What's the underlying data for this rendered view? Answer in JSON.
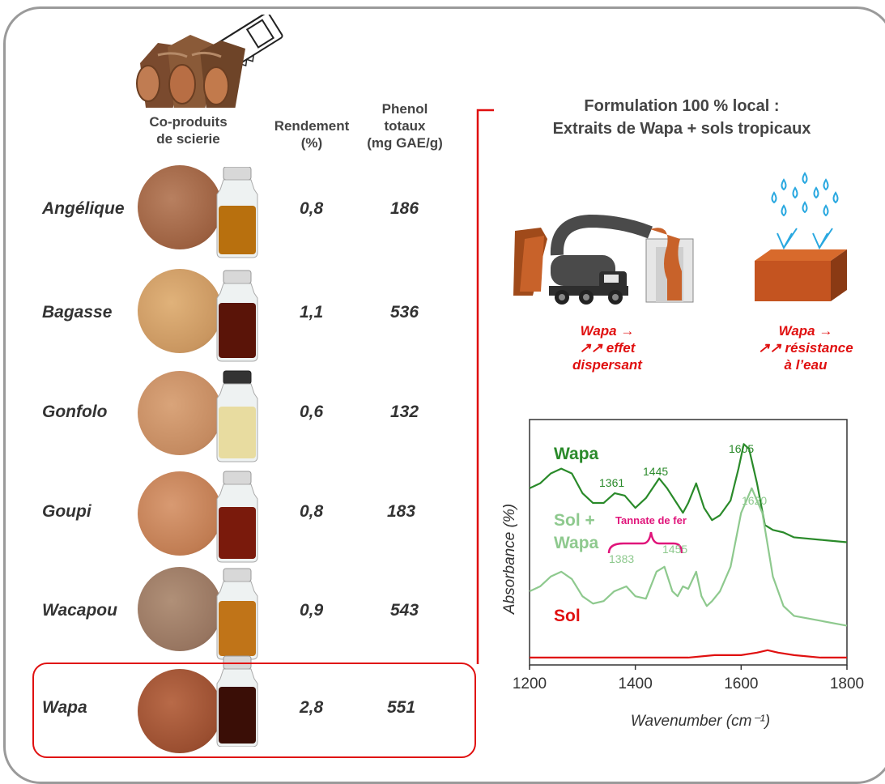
{
  "headers": {
    "coproduits": "Co-produits\nde scierie",
    "rendement": "Rendement\n(%)",
    "phenol": "Phenol\ntotaux\n(mg GAE/g)"
  },
  "rows": [
    {
      "name": "Angélique",
      "rendement": "0,8",
      "phenol": "186"
    },
    {
      "name": "Bagasse",
      "rendement": "1,1",
      "phenol": "536"
    },
    {
      "name": "Gonfolo",
      "rendement": "0,6",
      "phenol": "132"
    },
    {
      "name": "Goupi",
      "rendement": "0,8",
      "phenol": "183"
    },
    {
      "name": "Wacapou",
      "rendement": "0,9",
      "phenol": "543"
    },
    {
      "name": "Wapa",
      "rendement": "2,8",
      "phenol": "551"
    }
  ],
  "formulation": {
    "title_line1": "Formulation 100 % local :",
    "title_line2": "Extraits de Wapa + sols tropicaux"
  },
  "effects": {
    "dispersant": "Wapa →\n↗↗ effet\ndispersant",
    "resistance": "Wapa →\n↗↗ résistance\nà l’eau"
  },
  "colors": {
    "accent_red": "#e01010",
    "wapa_dark_green": "#2a8a2a",
    "wapa_light_green": "#8ec98e",
    "sol_red": "#e01010",
    "magenta": "#e0147a"
  },
  "chart_data": {
    "type": "line",
    "xlabel": "Wavenumber (cm⁻¹)",
    "ylabel": "Absorbance (%)",
    "xlim": [
      1200,
      1800
    ],
    "xticks": [
      1200,
      1400,
      1600,
      1800
    ],
    "series_labels": {
      "wapa": "Wapa",
      "sol_wapa_1": "Sol +",
      "sol_wapa_2": "Wapa",
      "sol": "Sol"
    },
    "annotation": "Tannate de fer",
    "peaks": {
      "wapa": [
        "1361",
        "1445",
        "1605"
      ],
      "sol_wapa": [
        "1383",
        "1455",
        "1620"
      ]
    },
    "series": [
      {
        "name": "Wapa",
        "color": "#2a8a2a",
        "x": [
          1200,
          1220,
          1240,
          1260,
          1280,
          1300,
          1320,
          1340,
          1361,
          1380,
          1400,
          1420,
          1445,
          1460,
          1475,
          1490,
          1500,
          1515,
          1530,
          1545,
          1560,
          1580,
          1595,
          1605,
          1615,
          1630,
          1645,
          1660,
          1680,
          1700,
          1750,
          1800
        ],
        "y": [
          0.72,
          0.74,
          0.78,
          0.8,
          0.78,
          0.7,
          0.66,
          0.66,
          0.7,
          0.69,
          0.64,
          0.68,
          0.76,
          0.72,
          0.67,
          0.62,
          0.66,
          0.74,
          0.64,
          0.59,
          0.61,
          0.67,
          0.8,
          0.9,
          0.88,
          0.74,
          0.57,
          0.55,
          0.54,
          0.52,
          0.51,
          0.5
        ]
      },
      {
        "name": "Sol + Wapa",
        "color": "#8ec98e",
        "x": [
          1200,
          1220,
          1240,
          1260,
          1280,
          1300,
          1320,
          1340,
          1360,
          1383,
          1400,
          1420,
          1440,
          1455,
          1470,
          1480,
          1490,
          1500,
          1515,
          1525,
          1535,
          1545,
          1560,
          1580,
          1600,
          1620,
          1640,
          1660,
          1680,
          1700,
          1750,
          1800
        ],
        "y": [
          0.3,
          0.32,
          0.36,
          0.38,
          0.35,
          0.28,
          0.25,
          0.26,
          0.3,
          0.32,
          0.28,
          0.27,
          0.38,
          0.4,
          0.3,
          0.28,
          0.32,
          0.31,
          0.38,
          0.28,
          0.24,
          0.26,
          0.3,
          0.4,
          0.62,
          0.72,
          0.62,
          0.36,
          0.24,
          0.2,
          0.18,
          0.16
        ]
      },
      {
        "name": "Sol",
        "color": "#e01010",
        "x": [
          1200,
          1300,
          1400,
          1500,
          1550,
          1600,
          1630,
          1650,
          1670,
          1700,
          1750,
          1800
        ],
        "y": [
          0.03,
          0.03,
          0.03,
          0.03,
          0.04,
          0.04,
          0.05,
          0.06,
          0.05,
          0.04,
          0.03,
          0.03
        ]
      }
    ]
  }
}
